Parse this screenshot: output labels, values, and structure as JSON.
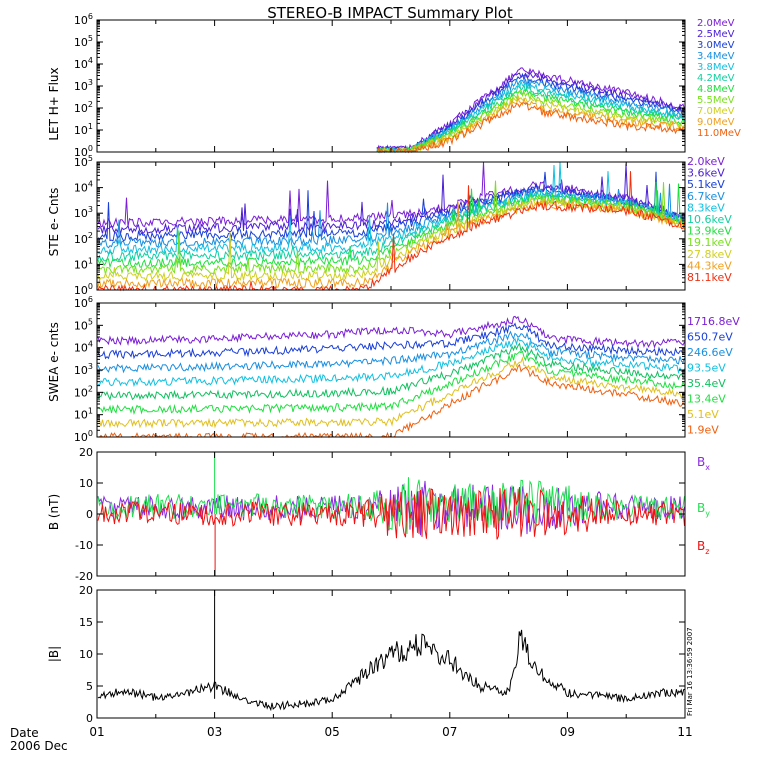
{
  "title": "STEREO-B IMPACT Summary Plot",
  "timestamp": "Fri Mar 16 13:36:59 2007",
  "date_label": "Date",
  "date_sub": "2006 Dec",
  "x_ticks": [
    "01",
    "03",
    "05",
    "07",
    "09",
    "11"
  ],
  "chart_data": [
    {
      "type": "line",
      "title": "",
      "ylabel": "LET H+ Flux",
      "yscale": "log",
      "ylim_exp": [
        0,
        6
      ],
      "y_tick_labels": [
        "10^0",
        "10^1",
        "10^2",
        "10^3",
        "10^4",
        "10^5",
        "10^6"
      ],
      "legend_placement": "right",
      "series": [
        {
          "name": "2.0MeV",
          "color": "#7a1fd6"
        },
        {
          "name": "2.5MeV",
          "color": "#4a1fd6"
        },
        {
          "name": "3.0MeV",
          "color": "#1a3fd8"
        },
        {
          "name": "3.4MeV",
          "color": "#1a8fe0"
        },
        {
          "name": "3.8MeV",
          "color": "#12c0e0"
        },
        {
          "name": "4.2MeV",
          "color": "#12d0a0"
        },
        {
          "name": "4.8MeV",
          "color": "#20e040"
        },
        {
          "name": "5.5MeV",
          "color": "#7ae020"
        },
        {
          "name": "7.0MeV",
          "color": "#d0d020"
        },
        {
          "name": "9.0MeV",
          "color": "#f0a020"
        },
        {
          "name": "11.0MeV",
          "color": "#f06010"
        }
      ],
      "envelope": {
        "x_day": [
          1.0,
          5.75,
          6.3,
          7.0,
          8.2,
          8.6,
          10.0,
          11.0
        ],
        "log_top": [
          null,
          0.1,
          0.1,
          1.3,
          3.7,
          3.5,
          2.7,
          2.0
        ],
        "log_bottom": [
          null,
          0.0,
          0.0,
          0.5,
          2.2,
          1.8,
          1.2,
          1.0
        ]
      }
    },
    {
      "type": "line",
      "title": "",
      "ylabel": "STE e- Cnts",
      "yscale": "log",
      "ylim_exp": [
        0,
        5
      ],
      "y_tick_labels": [
        "10^0",
        "10^1",
        "10^2",
        "10^3",
        "10^4",
        "10^5"
      ],
      "legend_placement": "right",
      "series": [
        {
          "name": "2.0keV",
          "color": "#7a1fd6"
        },
        {
          "name": "3.6keV",
          "color": "#4a1fd6"
        },
        {
          "name": "5.1keV",
          "color": "#1a3fd8"
        },
        {
          "name": "6.7keV",
          "color": "#1a8fe0"
        },
        {
          "name": "8.3keV",
          "color": "#12c0e0"
        },
        {
          "name": "10.6keV",
          "color": "#12d0a0"
        },
        {
          "name": "13.9keV",
          "color": "#20e040"
        },
        {
          "name": "19.1keV",
          "color": "#7ae020"
        },
        {
          "name": "27.8keV",
          "color": "#d0d020"
        },
        {
          "name": "44.3keV",
          "color": "#f0a020"
        },
        {
          "name": "81.1keV",
          "color": "#f03010"
        }
      ],
      "envelope": {
        "x_day": [
          1.0,
          5.5,
          6.5,
          7.5,
          8.5,
          10.0,
          11.0
        ],
        "log_top": [
          2.6,
          2.8,
          3.0,
          3.6,
          4.1,
          3.6,
          2.8
        ],
        "log_bottom": [
          0.0,
          0.0,
          1.5,
          2.6,
          3.3,
          3.1,
          2.5
        ]
      }
    },
    {
      "type": "line",
      "title": "",
      "ylabel": "SWEA e- cnts",
      "yscale": "log",
      "ylim_exp": [
        0,
        6
      ],
      "y_tick_labels": [
        "10^0",
        "10^1",
        "10^2",
        "10^3",
        "10^4",
        "10^5",
        "10^6"
      ],
      "legend_placement": "right",
      "series": [
        {
          "name": "1716.8eV",
          "color": "#7a1fd6"
        },
        {
          "name": "650.7eV",
          "color": "#1a3fd8"
        },
        {
          "name": "246.6eV",
          "color": "#1a8fe0"
        },
        {
          "name": "93.5eV",
          "color": "#12c0e0"
        },
        {
          "name": "35.4eV",
          "color": "#12c060"
        },
        {
          "name": "13.4eV",
          "color": "#20e040"
        },
        {
          "name": "5.1eV",
          "color": "#e0c020"
        },
        {
          "name": "1.9eV",
          "color": "#f06010"
        }
      ],
      "envelope": {
        "x_day": [
          1.0,
          3.0,
          5.0,
          6.0,
          7.0,
          8.2,
          8.7,
          10.0,
          11.0
        ],
        "log_top": [
          4.3,
          4.4,
          4.6,
          4.8,
          4.6,
          5.3,
          4.4,
          4.2,
          4.2
        ],
        "log_bottom": [
          0.0,
          0.0,
          0.0,
          0.0,
          1.5,
          3.1,
          2.4,
          1.9,
          1.5
        ]
      }
    },
    {
      "type": "line",
      "title": "",
      "ylabel": "B (nT)",
      "yscale": "linear",
      "ylim": [
        -20,
        20
      ],
      "y_tick_labels": [
        "-20",
        "-10",
        "0",
        "10",
        "20"
      ],
      "legend_placement": "right",
      "series": [
        {
          "name": "Bx",
          "color": "#8a2be2"
        },
        {
          "name": "By",
          "color": "#20e050"
        },
        {
          "name": "Bz",
          "color": "#f01010"
        }
      ],
      "spike": {
        "x_day": 3.0,
        "y_top": 20,
        "y_bottom": -20
      },
      "envelope": {
        "x_day": [
          1.0,
          5.5,
          6.3,
          7.0,
          8.2,
          10.0,
          11.0
        ],
        "amplitude": [
          4,
          4,
          10,
          7,
          9,
          4,
          4
        ]
      }
    },
    {
      "type": "line",
      "title": "",
      "ylabel": "|B|",
      "yscale": "linear",
      "ylim": [
        0,
        20
      ],
      "y_tick_labels": [
        "0",
        "5",
        "10",
        "15",
        "20"
      ],
      "series": [
        {
          "color": "#000000"
        }
      ],
      "spike": {
        "x_day": 3.0,
        "y_top": 20
      },
      "trace": {
        "x_day": [
          1.0,
          1.5,
          2.0,
          2.5,
          3.0,
          3.5,
          4.0,
          4.5,
          5.0,
          5.5,
          6.0,
          6.5,
          7.0,
          7.5,
          8.0,
          8.2,
          8.5,
          9.0,
          9.5,
          10.0,
          10.5,
          11.0
        ],
        "y": [
          3.6,
          4.2,
          3.2,
          4.0,
          5.0,
          3.0,
          1.8,
          2.2,
          3.0,
          6.5,
          10.0,
          11.5,
          9.0,
          5.0,
          4.0,
          13.0,
          7.0,
          4.0,
          3.5,
          3.0,
          3.8,
          4.2
        ]
      }
    }
  ]
}
